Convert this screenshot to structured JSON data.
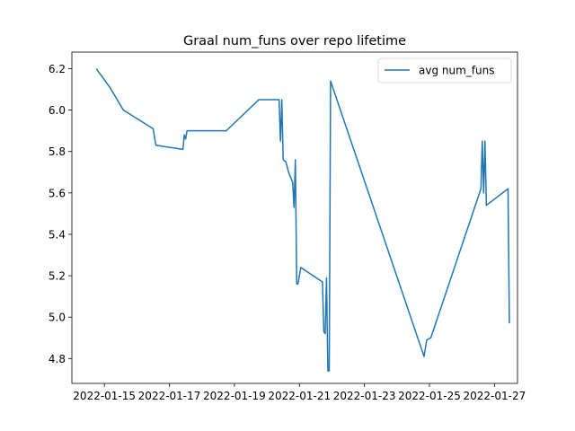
{
  "chart_data": {
    "type": "line",
    "title": "Graal num_funs over repo lifetime",
    "xlabel": "",
    "ylabel": "",
    "grid": false,
    "legend_position": "top-right",
    "x_range": [
      "2022-01-14T00:00",
      "2022-01-27T17:00"
    ],
    "ylim": [
      4.68,
      6.28
    ],
    "x_ticks": [
      {
        "date": "2022-01-15",
        "label": "2022-01-15"
      },
      {
        "date": "2022-01-17",
        "label": "2022-01-17"
      },
      {
        "date": "2022-01-19",
        "label": "2022-01-19"
      },
      {
        "date": "2022-01-21",
        "label": "2022-01-21"
      },
      {
        "date": "2022-01-23",
        "label": "2022-01-23"
      },
      {
        "date": "2022-01-25",
        "label": "2022-01-25"
      },
      {
        "date": "2022-01-27",
        "label": "2022-01-27"
      }
    ],
    "y_ticks": [
      4.8,
      5.0,
      5.2,
      5.4,
      5.6,
      5.8,
      6.0,
      6.2
    ],
    "y_tick_labels": [
      "4.8",
      "5.0",
      "5.2",
      "5.4",
      "5.6",
      "5.8",
      "6.0",
      "6.2"
    ],
    "series": [
      {
        "name": "avg num_funs",
        "color": "#1f77b4",
        "points": [
          [
            "2022-01-14T18:00",
            6.2
          ],
          [
            "2022-01-15T04:00",
            6.11
          ],
          [
            "2022-01-15T14:00",
            6.0
          ],
          [
            "2022-01-16T12:00",
            5.91
          ],
          [
            "2022-01-16T14:00",
            5.83
          ],
          [
            "2022-01-17T10:00",
            5.81
          ],
          [
            "2022-01-17T11:00",
            5.88
          ],
          [
            "2022-01-17T12:00",
            5.86
          ],
          [
            "2022-01-17T13:00",
            5.9
          ],
          [
            "2022-01-18T18:00",
            5.9
          ],
          [
            "2022-01-19T18:00",
            6.05
          ],
          [
            "2022-01-20T09:00",
            6.05
          ],
          [
            "2022-01-20T10:00",
            5.85
          ],
          [
            "2022-01-20T11:00",
            6.05
          ],
          [
            "2022-01-20T12:00",
            5.76
          ],
          [
            "2022-01-20T14:00",
            5.75
          ],
          [
            "2022-01-20T16:00",
            5.7
          ],
          [
            "2022-01-20T19:00",
            5.65
          ],
          [
            "2022-01-20T20:00",
            5.53
          ],
          [
            "2022-01-20T21:00",
            5.76
          ],
          [
            "2022-01-20T22:00",
            5.16
          ],
          [
            "2022-01-20T23:00",
            5.16
          ],
          [
            "2022-01-21T01:00",
            5.24
          ],
          [
            "2022-01-21T17:00",
            5.17
          ],
          [
            "2022-01-21T18:00",
            4.93
          ],
          [
            "2022-01-21T19:00",
            4.92
          ],
          [
            "2022-01-21T20:00",
            5.19
          ],
          [
            "2022-01-21T21:00",
            4.74
          ],
          [
            "2022-01-21T22:00",
            4.74
          ],
          [
            "2022-01-21T23:00",
            6.14
          ],
          [
            "2022-01-24T20:00",
            4.81
          ],
          [
            "2022-01-24T22:00",
            4.89
          ],
          [
            "2022-01-25T01:00",
            4.9
          ],
          [
            "2022-01-26T14:00",
            5.62
          ],
          [
            "2022-01-26T15:00",
            5.85
          ],
          [
            "2022-01-26T16:00",
            5.6
          ],
          [
            "2022-01-26T17:00",
            5.85
          ],
          [
            "2022-01-26T18:00",
            5.54
          ],
          [
            "2022-01-27T10:00",
            5.62
          ],
          [
            "2022-01-27T11:00",
            4.97
          ]
        ]
      }
    ]
  }
}
